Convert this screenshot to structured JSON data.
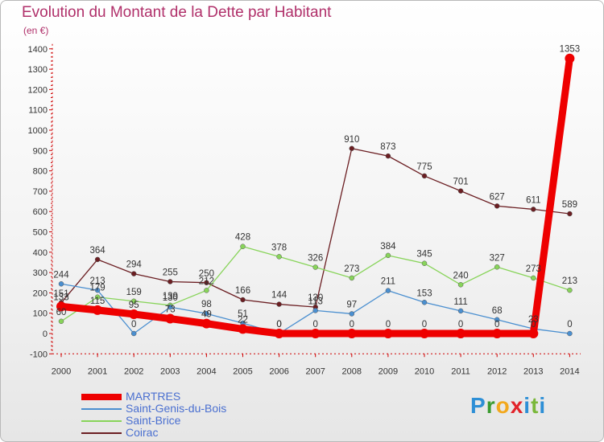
{
  "title": "Evolution du Montant de la Dette par Habitant",
  "subtitle": "(en €)",
  "logo": {
    "p": "P",
    "r": "r",
    "o": "o",
    "x": "x",
    "i": "i",
    "t": "t",
    "i2": "i"
  },
  "chart_data": {
    "type": "line",
    "x": [
      "2000",
      "2001",
      "2002",
      "2003",
      "2004",
      "2005",
      "2006",
      "2007",
      "2008",
      "2009",
      "2010",
      "2011",
      "2012",
      "2013",
      "2014"
    ],
    "ylim": [
      -100,
      1400
    ],
    "yticks": [
      "-100",
      "0",
      "100",
      "200",
      "300",
      "400",
      "500",
      "600",
      "700",
      "800",
      "900",
      "1000",
      "1100",
      "1200",
      "1300",
      "1400"
    ],
    "grid": false,
    "legend_position": "bottom-left",
    "series": [
      {
        "name": "MARTRES",
        "color": "#ee0000",
        "values": [
          133,
          115,
          95,
          73,
          49,
          22,
          0,
          0,
          0,
          0,
          0,
          0,
          0,
          0,
          1353
        ],
        "labels": [
          "133",
          "115",
          "95",
          "73",
          "49",
          "22",
          "0",
          "0",
          "0",
          "0",
          "0",
          "0",
          "0",
          "0",
          "1353"
        ]
      },
      {
        "name": "Saint-Genis-du-Bois",
        "color": "#4a8fd0",
        "values": [
          244,
          213,
          0,
          130,
          98,
          51,
          0,
          113,
          97,
          211,
          153,
          111,
          68,
          23,
          0
        ],
        "labels": [
          "244",
          "213",
          "0",
          "130",
          "98",
          "51",
          "0",
          "113",
          "97",
          "211",
          "153",
          "111",
          "68",
          "23",
          "0"
        ]
      },
      {
        "name": "Saint-Brice",
        "color": "#88d45a",
        "values": [
          60,
          179,
          159,
          139,
          212,
          428,
          378,
          326,
          273,
          384,
          345,
          240,
          327,
          273,
          213
        ],
        "labels": [
          "60",
          "179",
          "159",
          "139",
          "212",
          "428",
          "378",
          "326",
          "273",
          "384",
          "345",
          "240",
          "327",
          "273",
          "213"
        ]
      },
      {
        "name": "Coirac",
        "color": "#6b1e22",
        "values": [
          151,
          364,
          294,
          255,
          250,
          166,
          144,
          130,
          910,
          873,
          775,
          701,
          627,
          611,
          589
        ],
        "labels": [
          "151",
          "364",
          "294",
          "255",
          "250",
          "166",
          "144",
          "130",
          "910",
          "873",
          "775",
          "701",
          "627",
          "611",
          "589"
        ]
      }
    ]
  }
}
